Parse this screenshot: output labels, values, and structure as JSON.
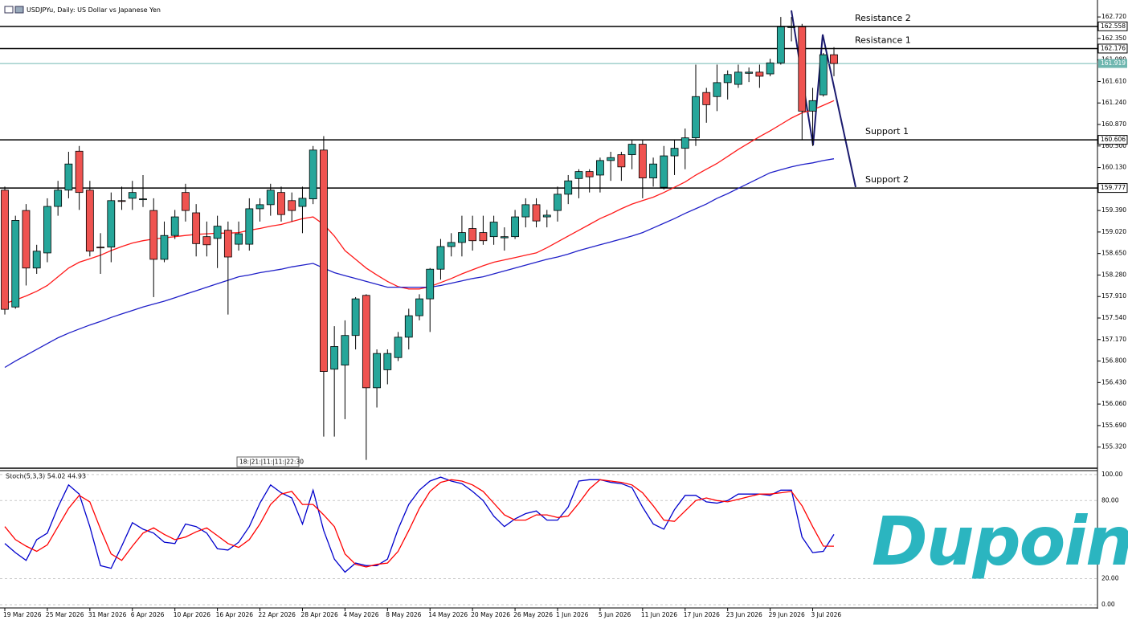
{
  "chart_data": {
    "type": "candlestick",
    "title": "USDJPYu, Daily:  US Dollar vs Japanese Yen",
    "categories": [
      "19 Mar 2026",
      null,
      null,
      null,
      "25 Mar 2026",
      null,
      null,
      null,
      "31 Mar 2026",
      null,
      null,
      null,
      "6 Apr 2026",
      null,
      null,
      null,
      "10 Apr 2026",
      null,
      null,
      null,
      "16 Apr 2026",
      null,
      null,
      null,
      "22 Apr 2026",
      null,
      null,
      null,
      "28 Apr 2026",
      null,
      null,
      null,
      "4 May 2026",
      null,
      null,
      null,
      "8 May 2026",
      null,
      null,
      null,
      "14 May 2026",
      null,
      null,
      null,
      "20 May 2026",
      null,
      null,
      null,
      "26 May 2026",
      null,
      null,
      null,
      "1 Jun 2026",
      null,
      null,
      null,
      "5 Jun 2026",
      null,
      null,
      null,
      "11 Jun 2026",
      null,
      null,
      null,
      "17 Jun 2026",
      null,
      null,
      null,
      "23 Jun 2026",
      null,
      null,
      null,
      "29 Jun 2026",
      null,
      null,
      null,
      "3 Jul 2026",
      null,
      null
    ],
    "open": [
      159.74,
      157.73,
      159.39,
      158.4,
      158.66,
      159.46,
      159.74,
      160.41,
      159.74,
      158.76,
      158.76,
      159.56,
      159.6,
      159.58,
      159.39,
      158.55,
      158.96,
      159.7,
      159.35,
      158.94,
      158.91,
      159.05,
      158.81,
      158.81,
      159.42,
      159.49,
      159.7,
      159.56,
      159.46,
      159.59,
      160.43,
      156.66,
      156.73,
      157.24,
      157.93,
      156.34,
      156.65,
      156.86,
      157.21,
      157.58,
      157.87,
      158.38,
      158.77,
      158.84,
      159.08,
      159.01,
      158.94,
      158.92,
      158.94,
      159.28,
      159.49,
      159.28,
      159.39,
      159.67,
      159.94,
      160.06,
      160.0,
      160.25,
      160.35,
      160.35,
      160.53,
      159.95,
      159.79,
      160.33,
      160.46,
      160.64,
      161.42,
      161.35,
      161.59,
      161.56,
      161.75,
      161.77,
      161.74,
      161.93,
      162.55,
      162.55,
      161.1,
      161.38,
      162.07
    ],
    "high": [
      159.8,
      159.3,
      159.5,
      158.8,
      159.6,
      159.9,
      160.4,
      160.5,
      159.9,
      159.0,
      159.7,
      159.8,
      159.9,
      160.0,
      159.6,
      159.2,
      159.4,
      159.85,
      159.5,
      159.2,
      159.3,
      159.2,
      159.2,
      159.6,
      159.6,
      159.85,
      159.8,
      159.7,
      159.8,
      160.5,
      160.67,
      157.4,
      157.5,
      157.9,
      157.95,
      157.0,
      157.0,
      157.3,
      157.7,
      157.95,
      158.4,
      158.9,
      159.0,
      159.3,
      159.3,
      159.3,
      159.3,
      159.1,
      159.4,
      159.6,
      159.6,
      159.4,
      159.8,
      160.0,
      160.1,
      160.1,
      160.3,
      160.4,
      160.4,
      160.6,
      160.6,
      160.3,
      160.5,
      160.6,
      160.8,
      161.9,
      161.5,
      161.9,
      161.8,
      161.9,
      161.85,
      161.9,
      162.0,
      162.72,
      162.72,
      162.6,
      161.5,
      162.1,
      162.2
    ],
    "low": [
      157.6,
      157.7,
      158.1,
      158.3,
      158.5,
      159.3,
      159.6,
      159.4,
      158.6,
      158.3,
      158.5,
      159.4,
      159.4,
      159.45,
      157.9,
      158.5,
      158.9,
      159.2,
      158.6,
      158.6,
      158.4,
      157.6,
      158.7,
      158.7,
      159.2,
      159.3,
      159.2,
      159.2,
      159.0,
      159.5,
      155.5,
      155.5,
      155.8,
      157.0,
      155.1,
      156.0,
      156.4,
      156.8,
      157.0,
      157.5,
      157.3,
      158.2,
      158.6,
      158.6,
      158.7,
      158.8,
      158.8,
      158.7,
      158.9,
      159.1,
      159.1,
      159.1,
      159.2,
      159.5,
      159.6,
      159.7,
      159.7,
      159.9,
      159.9,
      160.1,
      159.6,
      159.8,
      159.75,
      160.0,
      160.1,
      160.5,
      160.9,
      161.1,
      161.3,
      161.5,
      161.6,
      161.5,
      161.7,
      161.9,
      162.3,
      160.6,
      160.5,
      161.35,
      161.7
    ],
    "close": [
      157.69,
      159.22,
      158.4,
      158.69,
      159.46,
      159.74,
      160.19,
      159.7,
      158.69,
      158.75,
      159.56,
      159.55,
      159.7,
      159.59,
      158.55,
      158.96,
      159.28,
      159.39,
      158.82,
      158.8,
      159.12,
      158.59,
      158.99,
      159.42,
      159.49,
      159.74,
      159.32,
      159.39,
      159.6,
      160.43,
      156.62,
      157.05,
      157.24,
      157.87,
      156.34,
      156.93,
      156.93,
      157.21,
      157.58,
      157.87,
      158.38,
      158.77,
      158.84,
      159.01,
      158.87,
      158.87,
      159.19,
      158.94,
      159.28,
      159.49,
      159.21,
      159.31,
      159.67,
      159.9,
      160.06,
      159.97,
      160.25,
      160.3,
      160.14,
      160.53,
      159.95,
      160.19,
      160.33,
      160.46,
      160.64,
      161.35,
      161.21,
      161.59,
      161.73,
      161.77,
      161.77,
      161.7,
      161.93,
      162.55,
      162.55,
      161.1,
      161.28,
      162.07,
      161.919
    ],
    "up_color": "#26a69a",
    "down_color": "#ef5350",
    "series": [
      {
        "color": "#ff1a1a",
        "values": [
          157.79,
          157.85,
          157.92,
          158.0,
          158.1,
          158.25,
          158.4,
          158.5,
          158.56,
          158.62,
          158.7,
          158.77,
          158.83,
          158.87,
          158.9,
          158.92,
          158.94,
          158.96,
          158.98,
          158.99,
          159.0,
          159.0,
          159.01,
          159.05,
          159.08,
          159.12,
          159.15,
          159.2,
          159.25,
          159.28,
          159.15,
          158.95,
          158.7,
          158.55,
          158.4,
          158.28,
          158.17,
          158.08,
          158.04,
          158.04,
          158.08,
          158.15,
          158.22,
          158.3,
          158.37,
          158.44,
          158.5,
          158.54,
          158.58,
          158.62,
          158.66,
          158.75,
          158.85,
          158.95,
          159.05,
          159.15,
          159.25,
          159.33,
          159.42,
          159.5,
          159.56,
          159.62,
          159.7,
          159.79,
          159.88,
          160.0,
          160.1,
          160.2,
          160.32,
          160.44,
          160.55,
          160.66,
          160.76,
          160.87,
          160.98,
          161.07,
          161.12,
          161.2,
          161.28
        ]
      },
      {
        "color": "#1f1fc8",
        "values": [
          156.69,
          156.8,
          156.9,
          157.0,
          157.1,
          157.2,
          157.28,
          157.35,
          157.42,
          157.48,
          157.55,
          157.61,
          157.67,
          157.73,
          157.78,
          157.83,
          157.89,
          157.95,
          158.01,
          158.07,
          158.13,
          158.19,
          158.25,
          158.28,
          158.32,
          158.35,
          158.38,
          158.42,
          158.45,
          158.48,
          158.4,
          158.32,
          158.27,
          158.22,
          158.17,
          158.12,
          158.07,
          158.07,
          158.07,
          158.07,
          158.07,
          158.1,
          158.14,
          158.18,
          158.22,
          158.25,
          158.3,
          158.35,
          158.4,
          158.45,
          158.5,
          158.55,
          158.59,
          158.64,
          158.7,
          158.75,
          158.8,
          158.85,
          158.9,
          158.95,
          159.01,
          159.09,
          159.17,
          159.25,
          159.34,
          159.42,
          159.5,
          159.6,
          159.68,
          159.77,
          159.86,
          159.95,
          160.04,
          160.09,
          160.14,
          160.18,
          160.21,
          160.25,
          160.28
        ]
      }
    ],
    "levels": [
      {
        "name": "Resistance 2",
        "value": 162.558
      },
      {
        "name": "Resistance 1",
        "value": 162.176
      },
      {
        "name": "Support 1",
        "value": 160.606
      },
      {
        "name": "Support 2",
        "value": 159.777
      }
    ],
    "level_color": "#000000",
    "current_price": 161.919,
    "current_color": "#6fb7b0",
    "ylim": [
      154.97,
      162.97
    ],
    "yticks": [
      {
        "value": 162.72,
        "label": "162.720"
      },
      {
        "value": 162.35,
        "label": "162.350"
      },
      {
        "value": 161.98,
        "label": "161.980"
      },
      {
        "value": 161.61,
        "label": "161.610"
      },
      {
        "value": 161.24,
        "label": "161.240"
      },
      {
        "value": 160.87,
        "label": "160.870"
      },
      {
        "value": 160.5,
        "label": "160.500"
      },
      {
        "value": 160.13,
        "label": "160.130"
      },
      {
        "value": 159.39,
        "label": "159.390"
      },
      {
        "value": 159.02,
        "label": "159.020"
      },
      {
        "value": 158.65,
        "label": "158.650"
      },
      {
        "value": 158.28,
        "label": "158.280"
      },
      {
        "value": 157.91,
        "label": "157.910"
      },
      {
        "value": 157.54,
        "label": "157.540"
      },
      {
        "value": 157.17,
        "label": "157.170"
      },
      {
        "value": 156.8,
        "label": "156.800"
      },
      {
        "value": 156.43,
        "label": "156.430"
      },
      {
        "value": 156.06,
        "label": "156.060"
      },
      {
        "value": 155.69,
        "label": "155.690"
      },
      {
        "value": 155.32,
        "label": "155.320"
      }
    ],
    "grid": false,
    "time_tooltip": "18:|21:|11:|11:|22:30",
    "stochastic": {
      "type": "line",
      "title": "Stoch(5,3,3) 54.02 44.93",
      "series": [
        {
          "color": "#0000cc",
          "values": [
            47,
            40,
            34,
            50,
            55,
            75,
            92,
            85,
            60,
            30,
            28,
            45,
            63,
            58,
            55,
            48,
            47,
            62,
            60,
            55,
            43,
            42,
            48,
            60,
            78,
            92,
            86,
            82,
            62,
            88,
            57,
            35,
            25,
            32,
            30,
            30,
            35,
            58,
            77,
            88,
            95,
            98,
            95,
            93,
            87,
            80,
            68,
            60,
            66,
            70,
            72,
            65,
            65,
            75,
            95,
            96,
            96,
            94,
            93,
            90,
            75,
            62,
            58,
            73,
            84,
            84,
            79,
            78,
            80,
            85,
            85,
            85,
            84,
            88,
            88,
            52,
            40,
            41,
            54.02
          ]
        },
        {
          "color": "#ff0000",
          "values": [
            60,
            50,
            45,
            41,
            46,
            60,
            74,
            84,
            79,
            58,
            39,
            34,
            45,
            55,
            59,
            54,
            50,
            52,
            56,
            59,
            53,
            47,
            44,
            50,
            62,
            77,
            85,
            87,
            77,
            77,
            69,
            60,
            39,
            31,
            29,
            31,
            32,
            41,
            57,
            74,
            87,
            94,
            96,
            95,
            92,
            87,
            78,
            69,
            65,
            65,
            69,
            69,
            67,
            68,
            78,
            89,
            96,
            95,
            94,
            92,
            86,
            76,
            65,
            64,
            72,
            80,
            82,
            80,
            79,
            81,
            83,
            85,
            85,
            86,
            87,
            76,
            60,
            45,
            44.93
          ]
        }
      ],
      "ylim": [
        -2.5,
        103
      ],
      "yticks": [
        {
          "value": 100,
          "label": "100.00"
        },
        {
          "value": 80,
          "label": "80.00"
        },
        {
          "value": 20,
          "label": "20.00"
        },
        {
          "value": 0,
          "label": "0.00"
        }
      ]
    },
    "logo": "Dupoin"
  }
}
